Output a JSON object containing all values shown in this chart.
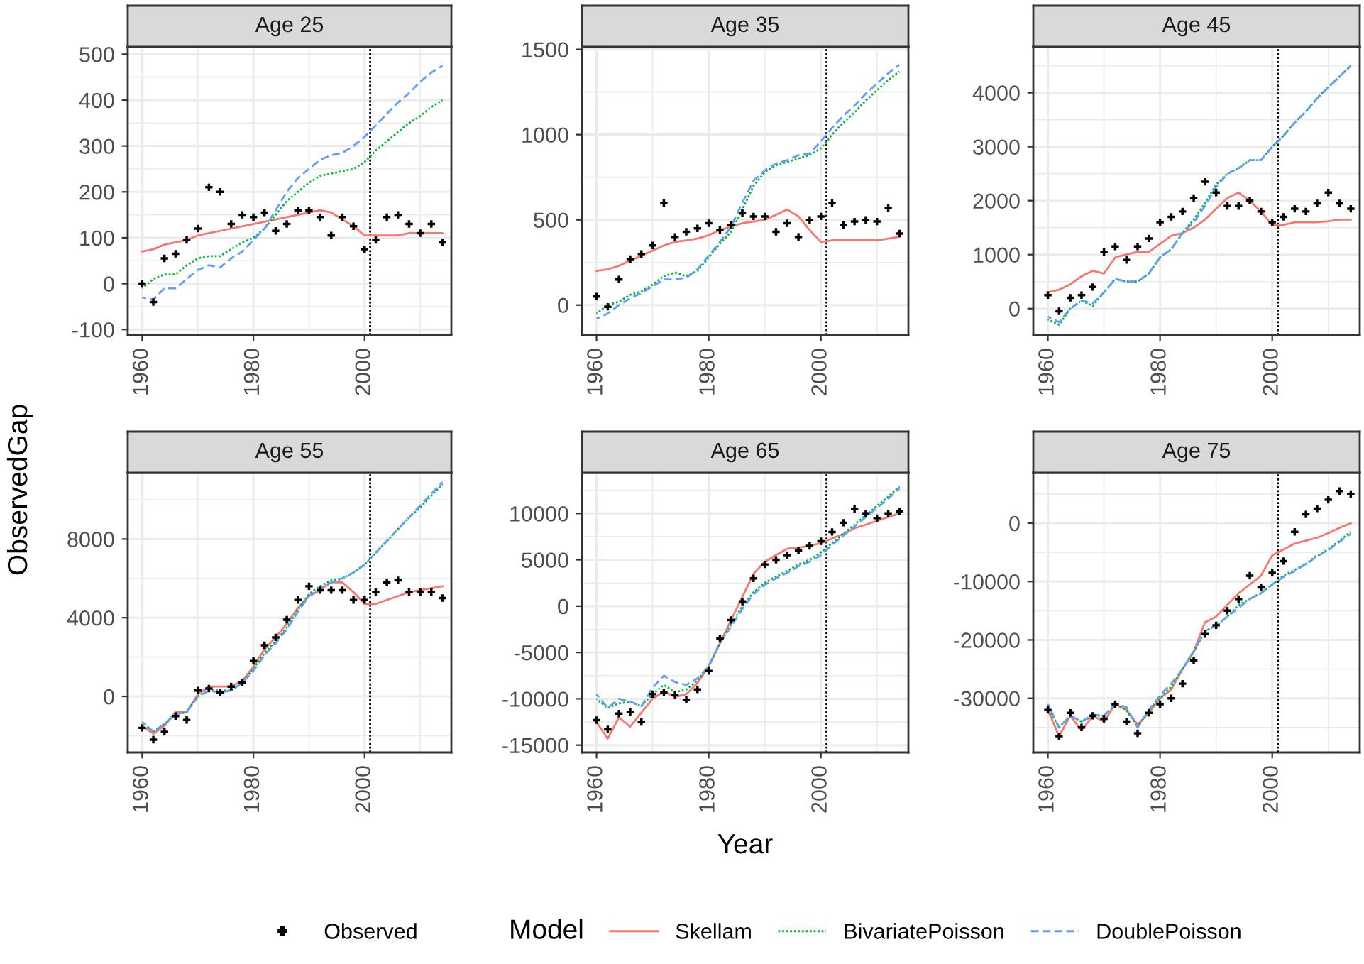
{
  "chart_data": [
    {
      "type": "line",
      "title": "Age 25",
      "legend": "bottom",
      "legend_title": "Model",
      "grid": true,
      "xlim": [
        1957.4,
        2015.6
      ],
      "xticks": [
        1960,
        1980,
        2000
      ],
      "ylim": [
        -112,
        516
      ],
      "yticks": [
        -100,
        0,
        100,
        200,
        300,
        400,
        500
      ],
      "ref_lines": [
        {
          "axis": "x",
          "value": 2001,
          "color": "#000000",
          "line_style": "dotted"
        }
      ],
      "x": [
        1960,
        1962,
        1964,
        1966,
        1968,
        1970,
        1972,
        1974,
        1976,
        1978,
        1980,
        1982,
        1984,
        1986,
        1988,
        1990,
        1992,
        1994,
        1996,
        1998,
        2000,
        2002,
        2004,
        2006,
        2008,
        2010,
        2012,
        2014
      ],
      "series": [
        {
          "name": "Observed",
          "type": "scatter",
          "marker": "cross",
          "color": "#000000",
          "values": [
            0,
            -40,
            55,
            65,
            95,
            120,
            210,
            200,
            130,
            150,
            145,
            155,
            115,
            130,
            160,
            160,
            145,
            105,
            145,
            125,
            75,
            95,
            145,
            150,
            130,
            110,
            130,
            90
          ]
        },
        {
          "name": "Skellam",
          "line_style": "solid",
          "color": "#f8766d",
          "values": [
            70,
            75,
            85,
            90,
            95,
            105,
            110,
            115,
            120,
            125,
            130,
            135,
            140,
            145,
            150,
            155,
            160,
            155,
            140,
            125,
            105,
            105,
            105,
            105,
            110,
            110,
            110,
            110
          ]
        },
        {
          "name": "BivariatePoisson",
          "line_style": "dotted",
          "color": "#00ba38",
          "values": [
            -10,
            10,
            20,
            20,
            40,
            55,
            60,
            60,
            75,
            90,
            100,
            120,
            150,
            180,
            200,
            220,
            235,
            240,
            245,
            250,
            265,
            290,
            310,
            330,
            350,
            365,
            385,
            400
          ]
        },
        {
          "name": "DoublePoisson",
          "line_style": "dashed",
          "color": "#619cff",
          "values": [
            -30,
            -35,
            -10,
            -10,
            10,
            30,
            40,
            35,
            55,
            70,
            95,
            120,
            160,
            200,
            230,
            250,
            270,
            280,
            285,
            300,
            320,
            345,
            370,
            395,
            415,
            440,
            460,
            475
          ]
        }
      ]
    },
    {
      "type": "line",
      "title": "Age 35",
      "grid": true,
      "xlim": [
        1957.4,
        2015.6
      ],
      "xticks": [
        1960,
        1980,
        2000
      ],
      "ylim": [
        -176,
        1515
      ],
      "yticks": [
        0,
        500,
        1000,
        1500
      ],
      "ref_lines": [
        {
          "axis": "x",
          "value": 2001,
          "color": "#000000",
          "line_style": "dotted"
        }
      ],
      "x": [
        1960,
        1962,
        1964,
        1966,
        1968,
        1970,
        1972,
        1974,
        1976,
        1978,
        1980,
        1982,
        1984,
        1986,
        1988,
        1990,
        1992,
        1994,
        1996,
        1998,
        2000,
        2002,
        2004,
        2006,
        2008,
        2010,
        2012,
        2014
      ],
      "series": [
        {
          "type": "scatter",
          "marker": "cross",
          "color": "#000000",
          "values": [
            50,
            -10,
            150,
            270,
            300,
            350,
            600,
            400,
            430,
            450,
            480,
            440,
            470,
            540,
            520,
            520,
            430,
            480,
            400,
            500,
            520,
            600,
            470,
            490,
            500,
            490,
            570,
            420
          ]
        },
        {
          "line_style": "solid",
          "color": "#f8766d",
          "values": [
            200,
            210,
            230,
            260,
            290,
            320,
            350,
            370,
            380,
            390,
            410,
            440,
            460,
            480,
            490,
            500,
            530,
            560,
            520,
            440,
            370,
            380,
            380,
            380,
            380,
            380,
            390,
            400
          ]
        },
        {
          "line_style": "dotted",
          "color": "#00ba38",
          "values": [
            -50,
            0,
            20,
            60,
            80,
            120,
            170,
            190,
            170,
            200,
            280,
            360,
            430,
            560,
            700,
            780,
            820,
            840,
            860,
            880,
            920,
            1000,
            1070,
            1130,
            1200,
            1260,
            1320,
            1370
          ]
        },
        {
          "line_style": "dashed",
          "color": "#619cff",
          "values": [
            -80,
            -50,
            0,
            40,
            70,
            110,
            150,
            150,
            160,
            210,
            290,
            370,
            460,
            600,
            730,
            790,
            830,
            850,
            880,
            890,
            960,
            1040,
            1110,
            1170,
            1240,
            1300,
            1360,
            1410
          ]
        }
      ]
    },
    {
      "type": "line",
      "title": "Age 45",
      "grid": true,
      "xlim": [
        1957.4,
        2015.6
      ],
      "xticks": [
        1960,
        1980,
        2000
      ],
      "ylim": [
        -490,
        4850
      ],
      "yticks": [
        0,
        1000,
        2000,
        3000,
        4000
      ],
      "ref_lines": [
        {
          "axis": "x",
          "value": 2001,
          "color": "#000000",
          "line_style": "dotted"
        }
      ],
      "x": [
        1960,
        1962,
        1964,
        1966,
        1968,
        1970,
        1972,
        1974,
        1976,
        1978,
        1980,
        1982,
        1984,
        1986,
        1988,
        1990,
        1992,
        1994,
        1996,
        1998,
        2000,
        2002,
        2004,
        2006,
        2008,
        2010,
        2012,
        2014
      ],
      "series": [
        {
          "type": "scatter",
          "marker": "cross",
          "color": "#000000",
          "values": [
            250,
            -50,
            200,
            250,
            400,
            1050,
            1150,
            900,
            1150,
            1300,
            1600,
            1700,
            1800,
            2050,
            2350,
            2150,
            1900,
            1900,
            2000,
            1800,
            1600,
            1700,
            1850,
            1800,
            1950,
            2150,
            1950,
            1850
          ]
        },
        {
          "line_style": "solid",
          "color": "#f8766d",
          "values": [
            300,
            350,
            450,
            600,
            700,
            650,
            950,
            1000,
            1050,
            1050,
            1200,
            1350,
            1400,
            1500,
            1650,
            1850,
            2050,
            2150,
            2000,
            1800,
            1550,
            1550,
            1600,
            1600,
            1600,
            1620,
            1650,
            1650
          ]
        },
        {
          "line_style": "dotted",
          "color": "#00ba38",
          "values": [
            -200,
            -300,
            0,
            150,
            50,
            300,
            550,
            500,
            500,
            650,
            950,
            1100,
            1400,
            1650,
            1950,
            2300,
            2500,
            2600,
            2750,
            2750,
            3000,
            3200,
            3450,
            3650,
            3900,
            4100,
            4300,
            4500
          ]
        },
        {
          "line_style": "dashed",
          "color": "#619cff",
          "values": [
            -150,
            -250,
            0,
            150,
            100,
            300,
            550,
            500,
            500,
            650,
            950,
            1100,
            1400,
            1600,
            1900,
            2250,
            2500,
            2600,
            2750,
            2750,
            3000,
            3200,
            3450,
            3650,
            3900,
            4100,
            4300,
            4500
          ]
        }
      ]
    },
    {
      "type": "line",
      "title": "Age 55",
      "ylabel": "ObservedGap",
      "grid": true,
      "xlim": [
        1957.4,
        2015.6
      ],
      "xticks": [
        1960,
        1980,
        2000
      ],
      "ylim": [
        -2850,
        11370
      ],
      "yticks": [
        0,
        4000,
        8000
      ],
      "ref_lines": [
        {
          "axis": "x",
          "value": 2001,
          "color": "#000000",
          "line_style": "dotted"
        }
      ],
      "x": [
        1960,
        1962,
        1964,
        1966,
        1968,
        1970,
        1972,
        1974,
        1976,
        1978,
        1980,
        1982,
        1984,
        1986,
        1988,
        1990,
        1992,
        1994,
        1996,
        1998,
        2000,
        2002,
        2004,
        2006,
        2008,
        2010,
        2012,
        2014
      ],
      "series": [
        {
          "type": "scatter",
          "marker": "cross",
          "color": "#000000",
          "values": [
            -1600,
            -2200,
            -1800,
            -1000,
            -1200,
            300,
            400,
            200,
            500,
            700,
            1800,
            2600,
            3000,
            3900,
            4900,
            5600,
            5400,
            5400,
            5400,
            4900,
            4900,
            5300,
            5800,
            5900,
            5300,
            5300,
            5300,
            5000
          ]
        },
        {
          "line_style": "solid",
          "color": "#f8766d",
          "values": [
            -1500,
            -1900,
            -1500,
            -800,
            -800,
            100,
            500,
            500,
            500,
            800,
            1500,
            2400,
            3000,
            3700,
            4500,
            5100,
            5400,
            5800,
            5800,
            5300,
            4700,
            4700,
            4900,
            5100,
            5300,
            5400,
            5500,
            5600
          ]
        },
        {
          "line_style": "dotted",
          "color": "#00ba38",
          "values": [
            -1300,
            -1800,
            -1400,
            -900,
            -800,
            0,
            300,
            300,
            300,
            700,
            1400,
            2200,
            2800,
            3500,
            4400,
            5200,
            5600,
            5900,
            6000,
            6300,
            6700,
            7300,
            7900,
            8500,
            9100,
            9600,
            10200,
            10800
          ]
        },
        {
          "line_style": "dashed",
          "color": "#619cff",
          "values": [
            -1300,
            -1800,
            -1400,
            -900,
            -800,
            0,
            300,
            200,
            300,
            700,
            1300,
            2100,
            2700,
            3400,
            4300,
            5100,
            5500,
            5800,
            6000,
            6300,
            6700,
            7300,
            7900,
            8500,
            9100,
            9700,
            10300,
            10900
          ]
        }
      ]
    },
    {
      "type": "line",
      "title": "Age 65",
      "xlabel": "Year",
      "grid": true,
      "xlim": [
        1957.4,
        2015.6
      ],
      "xticks": [
        1960,
        1980,
        2000
      ],
      "ylim": [
        -15790,
        14390
      ],
      "yticks": [
        -15000,
        -10000,
        -5000,
        0,
        5000,
        10000
      ],
      "ref_lines": [
        {
          "axis": "x",
          "value": 2001,
          "color": "#000000",
          "line_style": "dotted"
        }
      ],
      "x": [
        1960,
        1962,
        1964,
        1966,
        1968,
        1970,
        1972,
        1974,
        1976,
        1978,
        1980,
        1982,
        1984,
        1986,
        1988,
        1990,
        1992,
        1994,
        1996,
        1998,
        2000,
        2002,
        2004,
        2006,
        2008,
        2010,
        2012,
        2014
      ],
      "series": [
        {
          "type": "scatter",
          "marker": "cross",
          "color": "#000000",
          "values": [
            -12300,
            -13300,
            -11600,
            -11400,
            -12500,
            -9500,
            -9300,
            -9600,
            -10100,
            -9000,
            -7000,
            -3500,
            -1500,
            500,
            3000,
            4500,
            5000,
            5500,
            6000,
            6500,
            7000,
            8000,
            9000,
            10500,
            10000,
            9500,
            10000,
            10200
          ]
        },
        {
          "line_style": "solid",
          "color": "#f8766d",
          "values": [
            -12500,
            -14300,
            -12000,
            -13000,
            -11500,
            -10000,
            -9200,
            -9800,
            -9500,
            -8300,
            -6500,
            -4000,
            -1500,
            1000,
            3500,
            4800,
            5500,
            6200,
            6300,
            6500,
            6800,
            7300,
            7800,
            8400,
            8800,
            9200,
            9600,
            10000
          ]
        },
        {
          "line_style": "dotted",
          "color": "#00ba38",
          "values": [
            -10000,
            -11000,
            -10500,
            -10300,
            -10800,
            -9500,
            -8500,
            -9300,
            -9000,
            -8000,
            -6500,
            -4000,
            -2000,
            0,
            1500,
            2500,
            3200,
            3800,
            4500,
            5000,
            5800,
            6800,
            7800,
            8800,
            9800,
            10800,
            11800,
            12900
          ]
        },
        {
          "line_style": "dashed",
          "color": "#619cff",
          "values": [
            -9500,
            -11000,
            -10000,
            -10300,
            -10800,
            -8800,
            -7500,
            -8200,
            -8500,
            -7800,
            -6500,
            -4000,
            -2200,
            -300,
            1300,
            2300,
            3000,
            3600,
            4300,
            4800,
            5500,
            6600,
            7600,
            8600,
            9600,
            10600,
            11600,
            12700
          ]
        }
      ]
    },
    {
      "type": "line",
      "title": "Age 75",
      "grid": true,
      "xlim": [
        1957.4,
        2015.6
      ],
      "xticks": [
        1960,
        1980,
        2000
      ],
      "ylim": [
        -39280,
        8630
      ],
      "yticks": [
        -30000,
        -20000,
        -10000,
        0
      ],
      "ref_lines": [
        {
          "axis": "x",
          "value": 2001,
          "color": "#000000",
          "line_style": "dotted"
        }
      ],
      "x": [
        1960,
        1962,
        1964,
        1966,
        1968,
        1970,
        1972,
        1974,
        1976,
        1978,
        1980,
        1982,
        1984,
        1986,
        1988,
        1990,
        1992,
        1994,
        1996,
        1998,
        2000,
        2002,
        2004,
        2006,
        2008,
        2010,
        2012,
        2014
      ],
      "series": [
        {
          "type": "scatter",
          "marker": "cross",
          "color": "#000000",
          "values": [
            -32000,
            -36500,
            -32500,
            -35000,
            -33000,
            -33500,
            -31000,
            -34000,
            -36000,
            -32500,
            -31000,
            -30000,
            -27500,
            -23500,
            -19000,
            -17500,
            -15000,
            -13000,
            -9000,
            -11000,
            -8500,
            -6500,
            -1500,
            1500,
            2500,
            4000,
            5500,
            5000
          ]
        },
        {
          "line_style": "solid",
          "color": "#f8766d",
          "values": [
            -32000,
            -36500,
            -33000,
            -35500,
            -33000,
            -34000,
            -31000,
            -32000,
            -34500,
            -32500,
            -30000,
            -28500,
            -25000,
            -22000,
            -17000,
            -16000,
            -14000,
            -12000,
            -10500,
            -9000,
            -5500,
            -4500,
            -3500,
            -3000,
            -2500,
            -1700,
            -800,
            0
          ]
        },
        {
          "line_style": "dotted",
          "color": "#00ba38",
          "values": [
            -31500,
            -35000,
            -33000,
            -34000,
            -33000,
            -33000,
            -31000,
            -32000,
            -35000,
            -32000,
            -30000,
            -28000,
            -25000,
            -22000,
            -18500,
            -17500,
            -16000,
            -14000,
            -13000,
            -12000,
            -10500,
            -9000,
            -8000,
            -7000,
            -5500,
            -4500,
            -3000,
            -1500
          ]
        },
        {
          "line_style": "dashed",
          "color": "#619cff",
          "values": [
            -31000,
            -35000,
            -33000,
            -34000,
            -32800,
            -33000,
            -31000,
            -31500,
            -35000,
            -32000,
            -29500,
            -27500,
            -25000,
            -22000,
            -18500,
            -17500,
            -16000,
            -14500,
            -13000,
            -12000,
            -10500,
            -9200,
            -8200,
            -7000,
            -5700,
            -4600,
            -3200,
            -1800
          ]
        }
      ]
    }
  ]
}
